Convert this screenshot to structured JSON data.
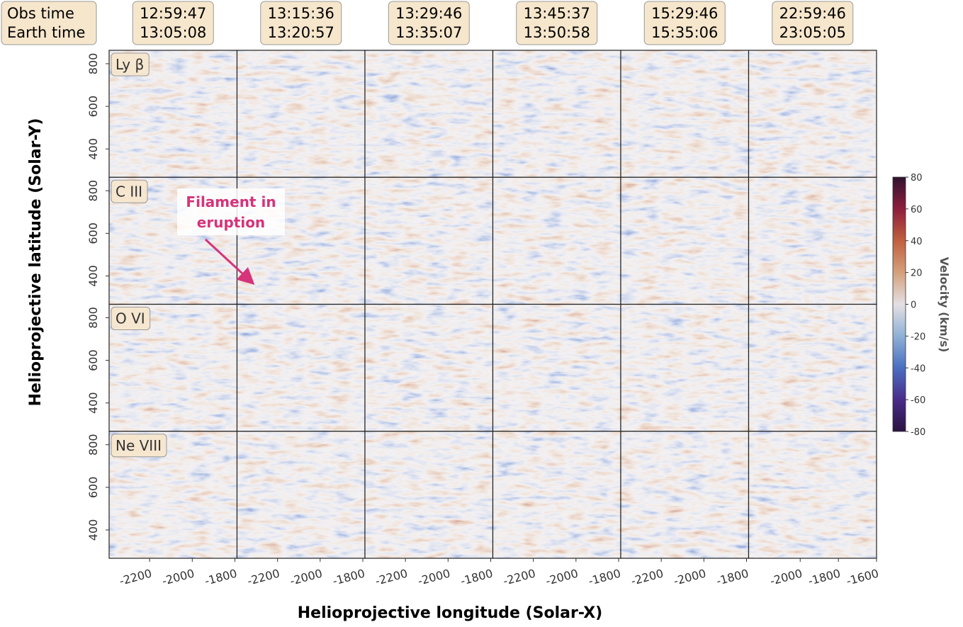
{
  "chart_data": {
    "type": "image-grid",
    "header_labels": [
      "Obs time",
      "Earth time"
    ],
    "columns": [
      {
        "obs_time": "12:59:47",
        "earth_time": "13:05:08",
        "xlim": [
          -2390,
          -1790
        ],
        "xticks": [
          -2200,
          -2000,
          -1800
        ]
      },
      {
        "obs_time": "13:15:36",
        "earth_time": "13:20:57",
        "xlim": [
          -2390,
          -1790
        ],
        "xticks": [
          -2200,
          -2000,
          -1800
        ]
      },
      {
        "obs_time": "13:29:46",
        "earth_time": "13:35:07",
        "xlim": [
          -2390,
          -1790
        ],
        "xticks": [
          -2200,
          -2000,
          -1800
        ]
      },
      {
        "obs_time": "13:45:37",
        "earth_time": "13:50:58",
        "xlim": [
          -2390,
          -1790
        ],
        "xticks": [
          -2200,
          -2000,
          -1800
        ]
      },
      {
        "obs_time": "15:29:46",
        "earth_time": "15:35:06",
        "xlim": [
          -2390,
          -1790
        ],
        "xticks": [
          -2200,
          -2000,
          -1800
        ]
      },
      {
        "obs_time": "22:59:46",
        "earth_time": "23:05:05",
        "xlim": [
          -2270,
          -1600
        ],
        "xticks": [
          -2000,
          -1800,
          -1600
        ]
      }
    ],
    "rows": [
      "Ly β",
      "C III",
      "O VI",
      "Ne VIII"
    ],
    "ylim": [
      267,
      863
    ],
    "yticks": [
      400,
      600,
      800
    ],
    "xlabel": "Helioprojective longitude (Solar-X)",
    "ylabel": "Helioprojective latitude (Solar-Y)",
    "annotation": [
      "Filament in",
      "eruption"
    ],
    "colorbar": {
      "label": "Velocity (km/s)",
      "lim": [
        -80,
        80
      ],
      "ticks": [
        -80,
        -60,
        -40,
        -20,
        0,
        20,
        40,
        60,
        80
      ],
      "colors": [
        "#2b1240",
        "#4a2d8a",
        "#4a6fc0",
        "#8fb1d6",
        "#e4dfe3",
        "#d4a07c",
        "#c0603f",
        "#8e1e3d",
        "#2f1330"
      ]
    }
  }
}
